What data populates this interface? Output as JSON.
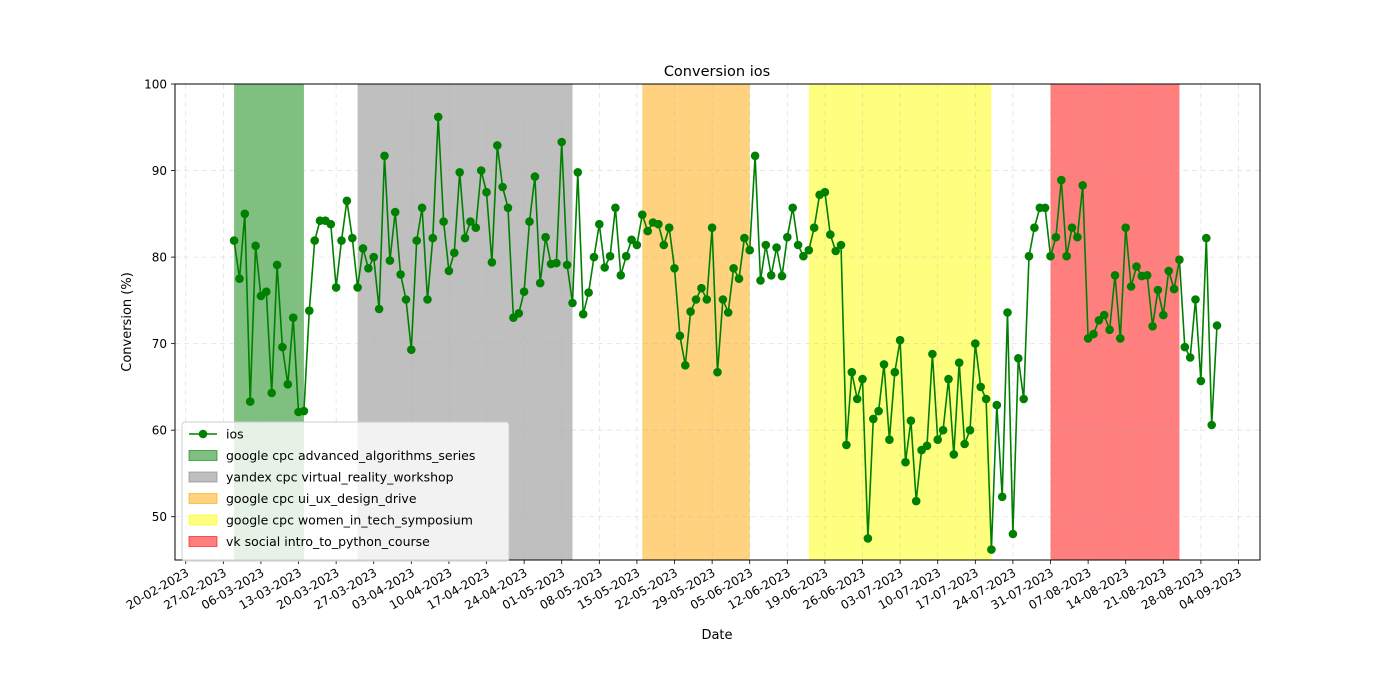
{
  "chart_data": {
    "type": "line",
    "title": "Conversion ios",
    "xlabel": "Date",
    "ylabel": "Conversion (%)",
    "ylim": [
      45,
      100
    ],
    "xlim": [
      "2023-02-18",
      "2023-09-08"
    ],
    "grid": true,
    "legend_position": "lower-left",
    "x_ticks": [
      "20-02-2023",
      "27-02-2023",
      "06-03-2023",
      "13-03-2023",
      "20-03-2023",
      "27-03-2023",
      "03-04-2023",
      "10-04-2023",
      "17-04-2023",
      "24-04-2023",
      "01-05-2023",
      "08-05-2023",
      "15-05-2023",
      "22-05-2023",
      "29-05-2023",
      "05-06-2023",
      "12-06-2023",
      "19-06-2023",
      "26-06-2023",
      "03-07-2023",
      "10-07-2023",
      "17-07-2023",
      "24-07-2023",
      "31-07-2023",
      "07-08-2023",
      "14-08-2023",
      "21-08-2023",
      "28-08-2023",
      "04-09-2023"
    ],
    "y_ticks": [
      50,
      60,
      70,
      80,
      90,
      100
    ],
    "series": [
      {
        "name": "ios",
        "color": "#008000",
        "start_date": "2023-03-01",
        "values": [
          81.9,
          77.5,
          85.0,
          63.3,
          81.3,
          75.5,
          76.0,
          64.3,
          79.1,
          69.6,
          65.3,
          73.0,
          62.1,
          62.2,
          73.8,
          81.9,
          84.2,
          84.2,
          83.8,
          76.5,
          81.9,
          86.5,
          82.2,
          76.5,
          81.0,
          78.7,
          80.0,
          74.0,
          91.7,
          79.6,
          85.2,
          78.0,
          75.1,
          69.3,
          81.9,
          85.7,
          75.1,
          82.2,
          96.2,
          84.1,
          78.4,
          80.5,
          89.8,
          82.2,
          84.1,
          83.4,
          90.0,
          87.5,
          79.4,
          92.9,
          88.1,
          85.7,
          73.0,
          73.5,
          76.0,
          84.1,
          89.3,
          77.0,
          82.3,
          79.2,
          79.3,
          93.3,
          79.1,
          74.7,
          89.8,
          73.4,
          75.9,
          80.0,
          83.8,
          78.8,
          80.1,
          85.7,
          77.9,
          80.1,
          82.0,
          81.4,
          84.9,
          83.0,
          84.0,
          83.8,
          81.4,
          83.4,
          78.7,
          70.9,
          67.5,
          73.7,
          75.1,
          76.4,
          75.1,
          83.4,
          66.7,
          75.1,
          73.6,
          78.7,
          77.5,
          82.2,
          80.8,
          91.7,
          77.3,
          81.4,
          77.9,
          81.1,
          77.8,
          82.3,
          85.7,
          81.4,
          80.1,
          80.8,
          83.4,
          87.2,
          87.5,
          82.6,
          80.7,
          81.4,
          58.3,
          66.7,
          63.6,
          65.9,
          47.5,
          61.3,
          62.2,
          67.6,
          58.9,
          66.7,
          70.4,
          56.3,
          61.1,
          51.8,
          57.7,
          58.2,
          68.8,
          58.9,
          60.0,
          65.9,
          57.2,
          67.8,
          58.4,
          60.0,
          70.0,
          65.0,
          63.6,
          46.2,
          62.9,
          52.3,
          73.6,
          48.0,
          68.3,
          63.6,
          80.1,
          83.4,
          85.7,
          85.7,
          80.1,
          82.3,
          88.9,
          80.1,
          83.4,
          82.3,
          88.3,
          70.6,
          71.1,
          72.7,
          73.3,
          71.6,
          77.9,
          70.6,
          83.4,
          76.6,
          78.9,
          77.8,
          77.9,
          72.0,
          76.2,
          73.3,
          78.4,
          76.3,
          79.7,
          69.6,
          68.4,
          75.1,
          65.7,
          82.2,
          60.6,
          72.1
        ]
      }
    ],
    "campaigns": [
      {
        "label": "google cpc advanced_algorithms_series",
        "start": "2023-03-01",
        "end": "2023-03-14",
        "color": "#008000",
        "opacity": 0.5
      },
      {
        "label": "yandex cpc virtual_reality_workshop",
        "start": "2023-03-24",
        "end": "2023-05-03",
        "color": "#808080",
        "opacity": 0.5
      },
      {
        "label": "google cpc ui_ux_design_drive",
        "start": "2023-05-16",
        "end": "2023-06-05",
        "color": "#ffa500",
        "opacity": 0.5
      },
      {
        "label": "google cpc women_in_tech_symposium",
        "start": "2023-06-16",
        "end": "2023-07-20",
        "color": "#ffff00",
        "opacity": 0.5
      },
      {
        "label": "vk social intro_to_python_course",
        "start": "2023-07-31",
        "end": "2023-08-24",
        "color": "#ff0000",
        "opacity": 0.5
      }
    ]
  }
}
